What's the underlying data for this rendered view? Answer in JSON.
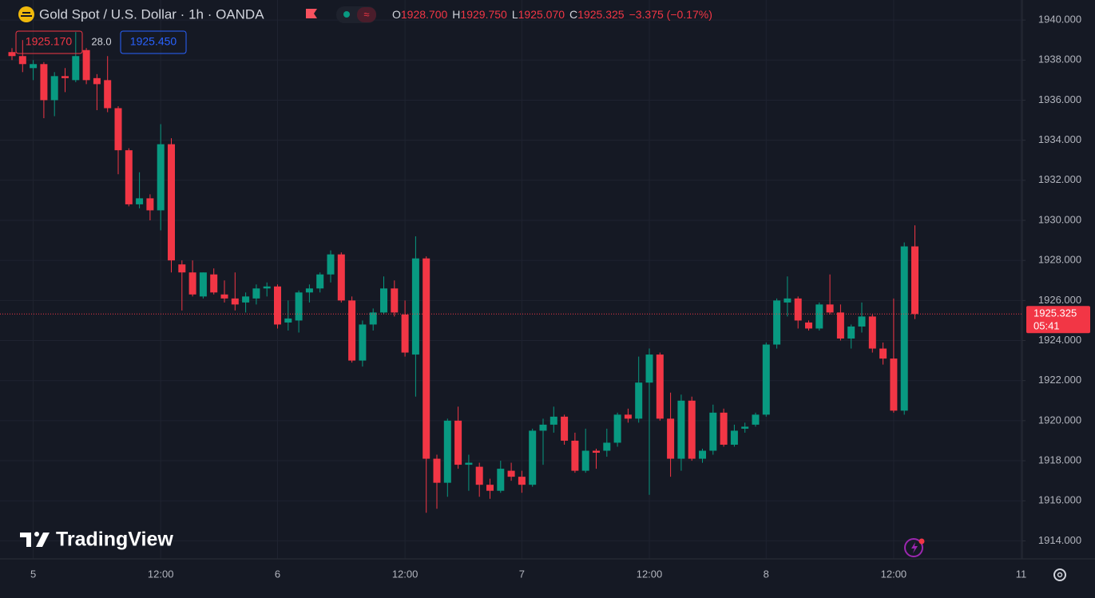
{
  "chart_data": {
    "type": "candlestick",
    "title": "Gold Spot / U.S. Dollar · 1h · OANDA",
    "readout": [
      {
        "key": "O",
        "value": "1928.700"
      },
      {
        "key": "H",
        "value": "1929.750"
      },
      {
        "key": "L",
        "value": "1925.070"
      },
      {
        "key": "C",
        "value": "1925.325"
      }
    ],
    "change": "−3.375 (−0.17%)",
    "bid": "1925.170",
    "spread": "28.0",
    "ask": "1925.450",
    "countdown": "05:41",
    "brand": "TradingView",
    "up_color": "#089981",
    "down_color": "#f23645",
    "grid": true,
    "ylim": [
      1913.1,
      1941.0
    ],
    "yticks": [
      {
        "value": 1914,
        "label": "1914.000"
      },
      {
        "value": 1916,
        "label": "1916.000"
      },
      {
        "value": 1918,
        "label": "1918.000"
      },
      {
        "value": 1920,
        "label": "1920.000"
      },
      {
        "value": 1922,
        "label": "1922.000"
      },
      {
        "value": 1924,
        "label": "1924.000"
      },
      {
        "value": 1926,
        "label": "1926.000"
      },
      {
        "value": 1928,
        "label": "1928.000"
      },
      {
        "value": 1930,
        "label": "1930.000"
      },
      {
        "value": 1932,
        "label": "1932.000"
      },
      {
        "value": 1934,
        "label": "1934.000"
      },
      {
        "value": 1936,
        "label": "1936.000"
      },
      {
        "value": 1938,
        "label": "1938.000"
      },
      {
        "value": 1940,
        "label": "1940.000"
      }
    ],
    "categories": [
      null,
      null,
      "5",
      null,
      null,
      null,
      null,
      null,
      null,
      null,
      null,
      null,
      null,
      null,
      "12:00",
      null,
      null,
      null,
      null,
      null,
      null,
      null,
      null,
      null,
      null,
      "6",
      null,
      null,
      null,
      null,
      null,
      null,
      null,
      null,
      null,
      null,
      null,
      "12:00",
      null,
      null,
      null,
      null,
      null,
      null,
      null,
      null,
      null,
      null,
      "7",
      null,
      null,
      null,
      null,
      null,
      null,
      null,
      null,
      null,
      null,
      null,
      "12:00",
      null,
      null,
      null,
      null,
      null,
      null,
      null,
      null,
      null,
      null,
      "8",
      null,
      null,
      null,
      null,
      null,
      null,
      null,
      null,
      null,
      null,
      null,
      "12:00",
      null,
      null,
      null,
      null,
      null,
      null,
      null,
      null,
      null,
      null,
      null,
      "11"
    ],
    "open": [
      1938.4,
      1938.2,
      1937.6,
      1937.8,
      1936.0,
      1937.2,
      1937.0,
      1938.5,
      1937.1,
      1937.0,
      1935.6,
      1933.5,
      1930.8,
      1931.1,
      1930.5,
      1933.8,
      1927.8,
      1927.4,
      1926.2,
      1927.3,
      1926.3,
      1926.1,
      1925.9,
      1926.1,
      1926.6,
      1926.7,
      1924.9,
      1925.0,
      1926.4,
      1926.6,
      1927.3,
      1928.3,
      1926.0,
      1923.0,
      1924.8,
      1925.4,
      1926.6,
      1925.3,
      1923.3,
      1928.1,
      1918.1,
      1916.9,
      1920.0,
      1917.8,
      1917.7,
      1916.8,
      1916.5,
      1917.5,
      1917.2,
      1916.8,
      1919.5,
      1919.8,
      1920.2,
      1919.0,
      1917.5,
      1918.5,
      1918.5,
      1918.9,
      1920.3,
      1920.1,
      1921.9,
      1923.3,
      1920.1,
      1918.1,
      1921.0,
      1918.1,
      1918.5,
      1920.4,
      1918.8,
      1919.6,
      1919.8,
      1920.3,
      1923.8,
      1925.9,
      1926.1,
      1924.9,
      1924.6,
      1925.8,
      1925.4,
      1924.1,
      1924.7,
      1925.2,
      1923.6,
      1923.1,
      1920.5,
      1928.7,
      null,
      null,
      null,
      null,
      null,
      null,
      null,
      null,
      null,
      null
    ],
    "high": [
      1938.6,
      1939.0,
      1938.0,
      1937.9,
      1937.4,
      1937.6,
      1939.4,
      1938.6,
      1937.3,
      1938.2,
      1935.7,
      1933.6,
      1932.4,
      1931.3,
      1934.8,
      1934.1,
      1928.0,
      1928.0,
      1927.4,
      1927.6,
      1927.0,
      1927.4,
      1926.4,
      1926.8,
      1926.9,
      1926.8,
      1926.0,
      1926.5,
      1926.8,
      1927.4,
      1928.5,
      1928.4,
      1926.2,
      1925.0,
      1925.6,
      1927.2,
      1927.0,
      1926.0,
      1929.2,
      1928.2,
      1918.3,
      1920.1,
      1920.7,
      1918.3,
      1917.9,
      1917.1,
      1918.0,
      1917.9,
      1917.5,
      1919.6,
      1920.1,
      1920.7,
      1920.3,
      1919.4,
      1919.6,
      1918.6,
      1919.6,
      1920.4,
      1920.6,
      1923.2,
      1923.6,
      1923.4,
      1921.4,
      1921.3,
      1921.2,
      1918.6,
      1920.8,
      1920.6,
      1919.8,
      1919.9,
      1920.4,
      1923.9,
      1926.1,
      1927.2,
      1926.2,
      1925.0,
      1925.9,
      1927.3,
      1925.8,
      1924.8,
      1925.9,
      1925.3,
      1923.9,
      1926.1,
      1928.9,
      1929.75,
      null,
      null,
      null,
      null,
      null,
      null,
      null,
      null,
      null,
      null
    ],
    "low": [
      1938.0,
      1937.4,
      1937.0,
      1935.1,
      1935.2,
      1936.4,
      1936.9,
      1936.8,
      1935.5,
      1935.4,
      1932.3,
      1930.7,
      1930.6,
      1930.0,
      1929.5,
      1927.4,
      1925.5,
      1926.2,
      1926.1,
      1926.3,
      1925.9,
      1925.5,
      1925.4,
      1925.8,
      1926.2,
      1924.6,
      1924.5,
      1924.4,
      1925.9,
      1926.4,
      1926.9,
      1925.9,
      1922.9,
      1922.7,
      1924.5,
      1925.3,
      1925.2,
      1923.2,
      1921.2,
      1915.4,
      1915.6,
      1916.2,
      1917.6,
      1916.5,
      1916.2,
      1916.1,
      1916.4,
      1917.0,
      1916.4,
      1916.7,
      1917.8,
      1919.4,
      1918.8,
      1917.4,
      1917.4,
      1917.6,
      1918.2,
      1918.7,
      1919.9,
      1919.9,
      1916.3,
      1920.0,
      1917.2,
      1917.5,
      1918.0,
      1917.9,
      1918.3,
      1918.7,
      1918.7,
      1919.4,
      1919.7,
      1920.2,
      1923.6,
      1925.2,
      1924.6,
      1924.5,
      1924.5,
      1925.3,
      1924.0,
      1923.6,
      1924.4,
      1923.4,
      1922.8,
      1920.4,
      1920.3,
      1925.07,
      null,
      null,
      null,
      null,
      null,
      null,
      null,
      null,
      null,
      null
    ],
    "close": [
      1938.2,
      1937.8,
      1937.8,
      1936.0,
      1937.2,
      1937.1,
      1938.2,
      1937.0,
      1936.8,
      1935.6,
      1933.5,
      1930.8,
      1931.1,
      1930.5,
      1933.8,
      1928.0,
      1927.4,
      1926.3,
      1927.4,
      1926.4,
      1926.1,
      1925.8,
      1926.2,
      1926.6,
      1926.7,
      1924.8,
      1925.1,
      1926.4,
      1926.6,
      1927.3,
      1928.3,
      1926.0,
      1923.0,
      1924.8,
      1925.4,
      1926.6,
      1925.4,
      1923.4,
      1928.1,
      1918.1,
      1916.9,
      1920.0,
      1917.8,
      1917.9,
      1916.8,
      1916.5,
      1917.6,
      1917.2,
      1916.8,
      1919.5,
      1919.8,
      1920.2,
      1919.0,
      1917.5,
      1918.5,
      1918.4,
      1918.9,
      1920.3,
      1920.1,
      1921.9,
      1923.3,
      1920.1,
      1918.1,
      1921.0,
      1918.1,
      1918.5,
      1920.4,
      1918.8,
      1919.5,
      1919.7,
      1920.3,
      1923.8,
      1926.0,
      1926.1,
      1925.0,
      1924.6,
      1925.8,
      1925.4,
      1924.1,
      1924.7,
      1925.2,
      1923.6,
      1923.1,
      1920.5,
      1928.7,
      1925.325,
      null,
      null,
      null,
      null,
      null,
      null,
      null,
      null,
      null,
      null
    ]
  }
}
